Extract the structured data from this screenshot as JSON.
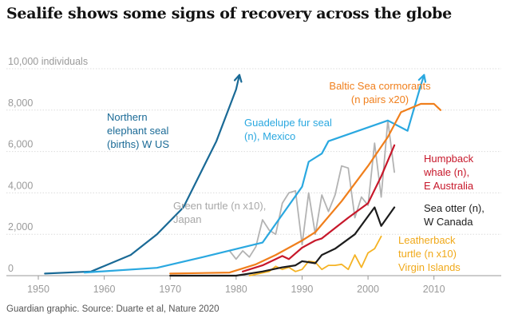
{
  "title": "Sealife shows some signs of recovery across the globe",
  "source": "Guardian graphic. Source: Duarte et al, Nature 2020",
  "chart_data": {
    "type": "line",
    "title": "Sealife shows some signs of recovery across the globe",
    "ylabel": "individuals",
    "xlim": [
      1950,
      2015
    ],
    "ylim": [
      0,
      10000
    ],
    "grid": true,
    "x_ticks": [
      {
        "value": 1950,
        "label": "1950"
      },
      {
        "value": 1960,
        "label": "1960"
      },
      {
        "value": 1970,
        "label": "1970"
      },
      {
        "value": 1980,
        "label": "1980"
      },
      {
        "value": 1990,
        "label": "1990"
      },
      {
        "value": 2000,
        "label": "2000"
      },
      {
        "value": 2010,
        "label": "2010"
      }
    ],
    "y_ticks": [
      {
        "value": 0,
        "label": "0"
      },
      {
        "value": 2000,
        "label": "2,000"
      },
      {
        "value": 4000,
        "label": "4,000"
      },
      {
        "value": 6000,
        "label": "6,000"
      },
      {
        "value": 8000,
        "label": "8,000"
      },
      {
        "value": 10000,
        "label": "10,000 individuals"
      }
    ],
    "series": [
      {
        "name": "Northern elephant seal (births) W US",
        "label_lines": [
          "Northern",
          "elephant seal",
          "(births) W US"
        ],
        "color": "#1a6a96",
        "arrow": true,
        "points": [
          [
            1951,
            100
          ],
          [
            1958,
            200
          ],
          [
            1964,
            1000
          ],
          [
            1968,
            2000
          ],
          [
            1972,
            3300
          ],
          [
            1977,
            6500
          ],
          [
            1980,
            9000
          ],
          [
            1980.5,
            9700
          ]
        ]
      },
      {
        "name": "Guadelupe fur seal (n), Mexico",
        "label_lines": [
          "Guadelupe fur seal",
          "(n), Mexico"
        ],
        "color": "#2aa8e0",
        "arrow": true,
        "points": [
          [
            1957,
            150
          ],
          [
            1968,
            380
          ],
          [
            1975,
            900
          ],
          [
            1984,
            1600
          ],
          [
            1986,
            2500
          ],
          [
            1990,
            4300
          ],
          [
            1991,
            5500
          ],
          [
            1993,
            5900
          ],
          [
            1994,
            6500
          ],
          [
            2003,
            7500
          ],
          [
            2006,
            7000
          ],
          [
            2008,
            9200
          ],
          [
            2008.5,
            9700
          ]
        ]
      },
      {
        "name": "Baltic Sea cormorants (n pairs x20)",
        "label_lines": [
          "Baltic Sea cormorants",
          "(n pairs x20)"
        ],
        "color": "#f07f1c",
        "arrow": false,
        "points": [
          [
            1970,
            100
          ],
          [
            1979,
            150
          ],
          [
            1983,
            550
          ],
          [
            1986,
            1000
          ],
          [
            1990,
            1700
          ],
          [
            1992,
            2100
          ],
          [
            1996,
            3600
          ],
          [
            2000,
            5300
          ],
          [
            2003,
            6700
          ],
          [
            2005,
            7900
          ],
          [
            2008,
            8300
          ],
          [
            2010,
            8300
          ],
          [
            2011,
            8000
          ]
        ]
      },
      {
        "name": "Green turtle (n x10), Japan",
        "label_lines": [
          "Green turtle (n x10),",
          "Japan"
        ],
        "color": "#b3b3b3",
        "arrow": false,
        "points": [
          [
            1979,
            1200
          ],
          [
            1980,
            800
          ],
          [
            1981,
            1200
          ],
          [
            1982,
            900
          ],
          [
            1983,
            1400
          ],
          [
            1984,
            2700
          ],
          [
            1985,
            2200
          ],
          [
            1986,
            2000
          ],
          [
            1987,
            3500
          ],
          [
            1988,
            4000
          ],
          [
            1989,
            4100
          ],
          [
            1990,
            1500
          ],
          [
            1991,
            4000
          ],
          [
            1992,
            2000
          ],
          [
            1993,
            3900
          ],
          [
            1994,
            3100
          ],
          [
            1995,
            3900
          ],
          [
            1996,
            5300
          ],
          [
            1997,
            5200
          ],
          [
            1998,
            2800
          ],
          [
            1999,
            3800
          ],
          [
            2000,
            3400
          ],
          [
            2001,
            6400
          ],
          [
            2002,
            3800
          ],
          [
            2003,
            7500
          ],
          [
            2004,
            5000
          ]
        ]
      },
      {
        "name": "Humpback whale (n), E Australia",
        "label_lines": [
          "Humpback",
          "whale (n),",
          "E Australia"
        ],
        "color": "#c7182b",
        "arrow": false,
        "points": [
          [
            1981,
            200
          ],
          [
            1984,
            500
          ],
          [
            1987,
            950
          ],
          [
            1988,
            800
          ],
          [
            1990,
            1350
          ],
          [
            1992,
            1700
          ],
          [
            1993,
            1800
          ],
          [
            1995,
            2300
          ],
          [
            1997,
            2800
          ],
          [
            2000,
            3500
          ],
          [
            2002,
            4800
          ],
          [
            2004,
            6300
          ]
        ]
      },
      {
        "name": "Sea otter (n), W Canada",
        "label_lines": [
          "Sea otter (n),",
          "W Canada"
        ],
        "color": "#1c1c1c",
        "arrow": false,
        "points": [
          [
            1970,
            0
          ],
          [
            1980,
            0
          ],
          [
            1984,
            200
          ],
          [
            1987,
            400
          ],
          [
            1989,
            500
          ],
          [
            1990,
            700
          ],
          [
            1992,
            600
          ],
          [
            1993,
            1000
          ],
          [
            1995,
            1300
          ],
          [
            1998,
            2000
          ],
          [
            2001,
            3300
          ],
          [
            2002,
            2400
          ],
          [
            2004,
            3300
          ]
        ]
      },
      {
        "name": "Leatherback turtle (n x10) Virgin Islands",
        "label_lines": [
          "Leatherback",
          "turtle (n x10)",
          "Virgin Islands"
        ],
        "color": "#f5b324",
        "arrow": false,
        "points": [
          [
            1982,
            0
          ],
          [
            1985,
            200
          ],
          [
            1986,
            450
          ],
          [
            1987,
            300
          ],
          [
            1988,
            400
          ],
          [
            1989,
            200
          ],
          [
            1990,
            300
          ],
          [
            1991,
            700
          ],
          [
            1992,
            650
          ],
          [
            1993,
            300
          ],
          [
            1994,
            500
          ],
          [
            1995,
            500
          ],
          [
            1996,
            550
          ],
          [
            1997,
            300
          ],
          [
            1998,
            1000
          ],
          [
            1999,
            400
          ],
          [
            2000,
            1100
          ],
          [
            2001,
            1300
          ],
          [
            2002,
            1900
          ]
        ]
      }
    ]
  }
}
